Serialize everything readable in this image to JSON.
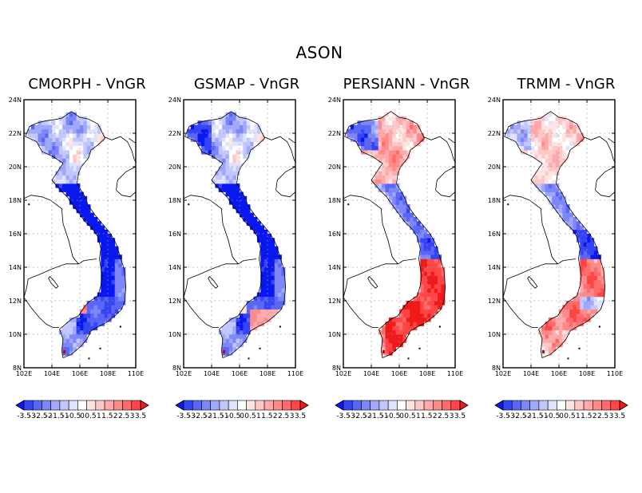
{
  "figure": {
    "title": "ASON"
  },
  "panels": [
    {
      "title": "CMORPH - VnGR",
      "scheme": "cmorph"
    },
    {
      "title": "GSMAP - VnGR",
      "scheme": "gsmap"
    },
    {
      "title": "PERSIANN - VnGR",
      "scheme": "persiann"
    },
    {
      "title": "TRMM - VnGR",
      "scheme": "trmm"
    }
  ],
  "axes": {
    "lon_ticks": [
      "102E",
      "104E",
      "106E",
      "108E",
      "110E"
    ],
    "lat_ticks": [
      "8N",
      "10N",
      "12N",
      "14N",
      "16N",
      "18N",
      "20N",
      "22N",
      "24N"
    ],
    "lon_range": [
      102,
      110
    ],
    "lat_range": [
      8,
      24
    ],
    "grid": "dotted"
  },
  "colorbar": {
    "labels": [
      "-3.5",
      "-3",
      "-2.5",
      "-2",
      "-1.5",
      "-1",
      "-0.5",
      "0",
      "0.5",
      "1",
      "1.5",
      "2",
      "2.5",
      "3",
      "3.5"
    ],
    "colors": [
      "#0a18f0",
      "#3545f5",
      "#5a66f8",
      "#7d87fa",
      "#a0a8fb",
      "#c2c8fd",
      "#e0e3fe",
      "#ffffff",
      "#ffe4e4",
      "#ffc8c8",
      "#ffaaaa",
      "#ff8a8a",
      "#ff6a6a",
      "#ff4545",
      "#f01a1a"
    ]
  }
}
